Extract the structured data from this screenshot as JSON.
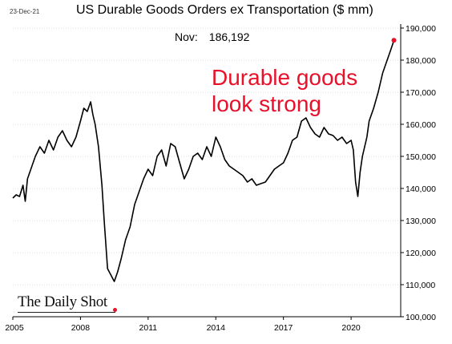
{
  "header": {
    "date": "23-Dec-21",
    "title": "US Durable Goods Orders ex Transportation ($ mm)",
    "latest_label": "Nov:",
    "latest_value": "186,192"
  },
  "annotation": {
    "line1": "Durable goods",
    "line2": "look strong"
  },
  "brand": {
    "name": "The Daily Shot"
  },
  "colors": {
    "line": "#000000",
    "highlight": "#e8102a",
    "grid": "#d0d0d0"
  },
  "chart_data": {
    "type": "line",
    "title": "US Durable Goods Orders ex Transportation ($ mm)",
    "xlabel": "",
    "ylabel": "",
    "xlim": [
      2005.0,
      2022.2
    ],
    "ylim": [
      100000,
      190000
    ],
    "x_ticks": [
      2005,
      2008,
      2011,
      2014,
      2017,
      2020
    ],
    "x_tick_labels": [
      "2005",
      "2008",
      "2011",
      "2014",
      "2017",
      "2020"
    ],
    "y_ticks": [
      100000,
      110000,
      120000,
      130000,
      140000,
      150000,
      160000,
      170000,
      180000,
      190000
    ],
    "y_tick_labels": [
      "100,000",
      "110,000",
      "120,000",
      "130,000",
      "140,000",
      "150,000",
      "160,000",
      "170,000",
      "180,000",
      "190,000"
    ],
    "grid": "horizontal dotted",
    "y_axis_side": "right",
    "last_point_marker": "red dot",
    "series": [
      {
        "x": [
          2005.0,
          2005.15,
          2005.3,
          2005.45,
          2005.55,
          2005.65,
          2005.8,
          2006.0,
          2006.2,
          2006.4,
          2006.6,
          2006.8,
          2007.0,
          2007.2,
          2007.4,
          2007.6,
          2007.8,
          2008.0,
          2008.15,
          2008.3,
          2008.45,
          2008.55,
          2008.65,
          2008.8,
          2008.95,
          2009.05,
          2009.2,
          2009.35,
          2009.5,
          2009.65,
          2009.8,
          2010.0,
          2010.2,
          2010.4,
          2010.6,
          2010.8,
          2011.0,
          2011.2,
          2011.4,
          2011.6,
          2011.8,
          2012.0,
          2012.2,
          2012.4,
          2012.6,
          2012.8,
          2013.0,
          2013.2,
          2013.4,
          2013.6,
          2013.8,
          2014.0,
          2014.2,
          2014.4,
          2014.6,
          2014.8,
          2015.0,
          2015.2,
          2015.4,
          2015.6,
          2015.8,
          2016.0,
          2016.2,
          2016.4,
          2016.6,
          2016.8,
          2017.0,
          2017.2,
          2017.4,
          2017.6,
          2017.8,
          2018.0,
          2018.2,
          2018.4,
          2018.6,
          2018.8,
          2019.0,
          2019.2,
          2019.4,
          2019.6,
          2019.8,
          2020.0,
          2020.1,
          2020.2,
          2020.3,
          2020.4,
          2020.5,
          2020.6,
          2020.7,
          2020.8,
          2021.0,
          2021.2,
          2021.4,
          2021.6,
          2021.75,
          2021.9
        ],
        "values": [
          137000,
          138000,
          137500,
          141000,
          136000,
          143000,
          146000,
          150000,
          153000,
          151000,
          155000,
          152000,
          156000,
          158000,
          155000,
          153000,
          156000,
          161000,
          165000,
          164000,
          167000,
          163000,
          160000,
          153000,
          141000,
          130000,
          115000,
          113000,
          111000,
          114000,
          118000,
          124000,
          128000,
          135000,
          139000,
          143000,
          146000,
          144000,
          150000,
          152000,
          147000,
          154000,
          153000,
          148000,
          143000,
          146000,
          150000,
          151000,
          149000,
          153000,
          150000,
          156000,
          153000,
          149000,
          147000,
          146000,
          145000,
          144000,
          142000,
          143000,
          141000,
          141500,
          142000,
          144000,
          146000,
          147000,
          148000,
          151000,
          155000,
          156000,
          161000,
          162000,
          159000,
          157000,
          156000,
          159000,
          157000,
          156500,
          155000,
          156000,
          154000,
          155000,
          152000,
          142000,
          137500,
          145000,
          150000,
          153000,
          156000,
          161000,
          165000,
          170000,
          176000,
          180000,
          183000,
          186192
        ]
      }
    ]
  }
}
